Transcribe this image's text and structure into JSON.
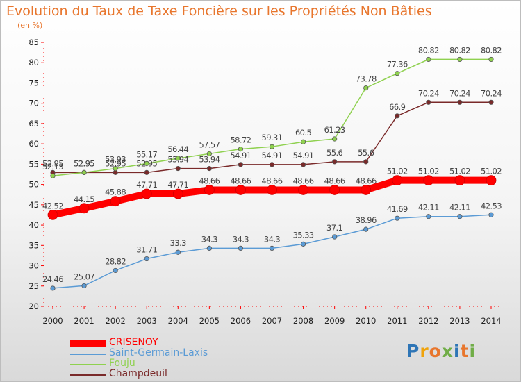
{
  "title": "Evolution du Taux de Taxe Foncière sur les Propriétés Non Bâties",
  "subtitle": "(en %)",
  "logo_text": "Proxiti",
  "chart_data": {
    "type": "line",
    "title": "Evolution du Taux de Taxe Foncière sur les Propriétés Non Bâties",
    "ylabel": "(en %)",
    "xlabel": "",
    "ylim": [
      20,
      85
    ],
    "yticks": [
      20,
      25,
      30,
      35,
      40,
      45,
      50,
      55,
      60,
      65,
      70,
      75,
      80,
      85
    ],
    "x": [
      "2000",
      "2001",
      "2002",
      "2003",
      "2004",
      "2005",
      "2006",
      "2007",
      "2008",
      "2009",
      "2010",
      "2011",
      "2012",
      "2013",
      "2014"
    ],
    "grid": false,
    "legend": "bottom-left",
    "series": [
      {
        "name": "CRISENOY",
        "color": "#ff0000",
        "values": [
          42.52,
          44.15,
          45.88,
          47.71,
          47.71,
          48.66,
          48.66,
          48.66,
          48.66,
          48.66,
          48.66,
          51.02,
          51.02,
          51.02,
          51.02
        ],
        "labels": [
          "42.52",
          "44.15",
          "45.88",
          "47.71",
          "47.71",
          "48.66",
          "48.66",
          "48.66",
          "48.66",
          "48.66",
          "48.66",
          "51.02",
          "51.02",
          "51.02",
          "51.02"
        ]
      },
      {
        "name": "Saint-Germain-Laxis",
        "color": "#5b9bd5",
        "values": [
          24.46,
          25.07,
          28.82,
          31.71,
          33.3,
          34.3,
          34.3,
          34.3,
          35.33,
          37.1,
          38.96,
          41.69,
          42.11,
          42.11,
          42.53
        ],
        "labels": [
          "24.46",
          "25.07",
          "28.82",
          "31.71",
          "33.3",
          "34.3",
          "34.3",
          "34.3",
          "35.33",
          "37.1",
          "38.96",
          "41.69",
          "42.11",
          "42.11",
          "42.53"
        ]
      },
      {
        "name": "Fouju",
        "color": "#8fd14f",
        "values": [
          52.13,
          52.95,
          53.93,
          55.17,
          56.44,
          57.57,
          58.72,
          59.31,
          60.5,
          61.23,
          73.78,
          77.36,
          80.82,
          80.82,
          80.82
        ],
        "labels": [
          "52.13",
          "52.95",
          "53.93",
          "55.17",
          "56.44",
          "57.57",
          "58.72",
          "59.31",
          "60.5",
          "61.23",
          "73.78",
          "77.36",
          "80.82",
          "80.82",
          "80.82"
        ]
      },
      {
        "name": "Champdeuil",
        "color": "#7a2a2a",
        "values": [
          52.95,
          52.95,
          52.95,
          52.95,
          53.94,
          53.94,
          54.91,
          54.91,
          54.91,
          55.6,
          55.6,
          66.9,
          70.24,
          70.24,
          70.24
        ],
        "labels": [
          "52.95",
          "52.95",
          "52.95",
          "52.95",
          "53.94",
          "53.94",
          "54.91",
          "54.91",
          "54.91",
          "55.6",
          "55.6",
          "66.9",
          "70.24",
          "70.24",
          "70.24"
        ]
      }
    ]
  },
  "legend_items": [
    {
      "name": "CRISENOY",
      "color": "#ff0000"
    },
    {
      "name": "Saint-Germain-Laxis",
      "color": "#5b9bd5"
    },
    {
      "name": "Fouju",
      "color": "#8fd14f"
    },
    {
      "name": "Champdeuil",
      "color": "#7a2a2a"
    }
  ]
}
